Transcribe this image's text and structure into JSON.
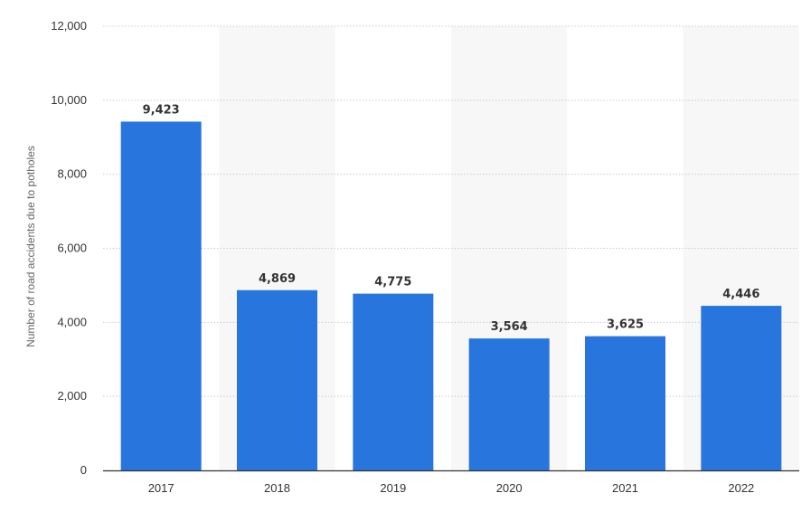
{
  "chart_data": {
    "type": "bar",
    "title": "",
    "xlabel": "",
    "ylabel": "Number of road accidents due to potholes",
    "categories": [
      "2017",
      "2018",
      "2019",
      "2020",
      "2021",
      "2022"
    ],
    "values": [
      9423,
      4869,
      4775,
      3564,
      3625,
      4446
    ],
    "value_labels": [
      "9,423",
      "4,869",
      "4,775",
      "3,564",
      "3,625",
      "4,446"
    ],
    "ylim": [
      0,
      12000
    ],
    "yticks": [
      0,
      2000,
      4000,
      6000,
      8000,
      10000,
      12000
    ],
    "ytick_labels": [
      "0",
      "2,000",
      "4,000",
      "6,000",
      "8,000",
      "10,000",
      "12,000"
    ],
    "grid": true,
    "grid_style": "dotted",
    "alternating_column_bands": true,
    "legend": "none",
    "colors": {
      "bar": "#2876dd",
      "band": "#f7f7f7",
      "grid": "#cccccc",
      "axis": "#333333",
      "text": "#333333"
    }
  }
}
